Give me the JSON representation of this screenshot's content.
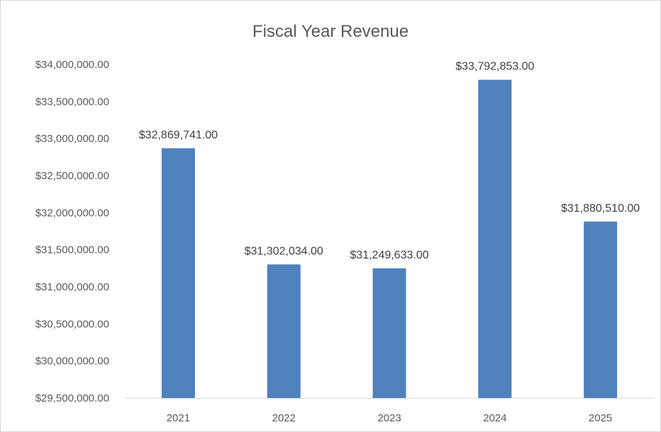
{
  "chart_data": {
    "type": "bar",
    "title": "Fiscal Year Revenue",
    "xlabel": "",
    "ylabel": "",
    "categories": [
      "2021",
      "2022",
      "2023",
      "2024",
      "2025"
    ],
    "values": [
      32869741,
      31302034,
      31249633,
      33792853,
      31880510
    ],
    "data_labels": [
      "$32,869,741.00",
      "$31,302,034.00",
      "$31,249,633.00",
      "$33,792,853.00",
      "$31,880,510.00"
    ],
    "ylim": [
      29500000,
      34000000
    ],
    "yticks": [
      29500000,
      30000000,
      30500000,
      31000000,
      31500000,
      32000000,
      32500000,
      33000000,
      33500000,
      34000000
    ],
    "ytick_labels": [
      "$29,500,000.00",
      "$30,000,000.00",
      "$30,500,000.00",
      "$31,000,000.00",
      "$31,500,000.00",
      "$32,000,000.00",
      "$32,500,000.00",
      "$33,000,000.00",
      "$33,500,000.00",
      "$34,000,000.00"
    ],
    "grid": false,
    "legend": "none",
    "bar_color": "#4f81bd"
  }
}
